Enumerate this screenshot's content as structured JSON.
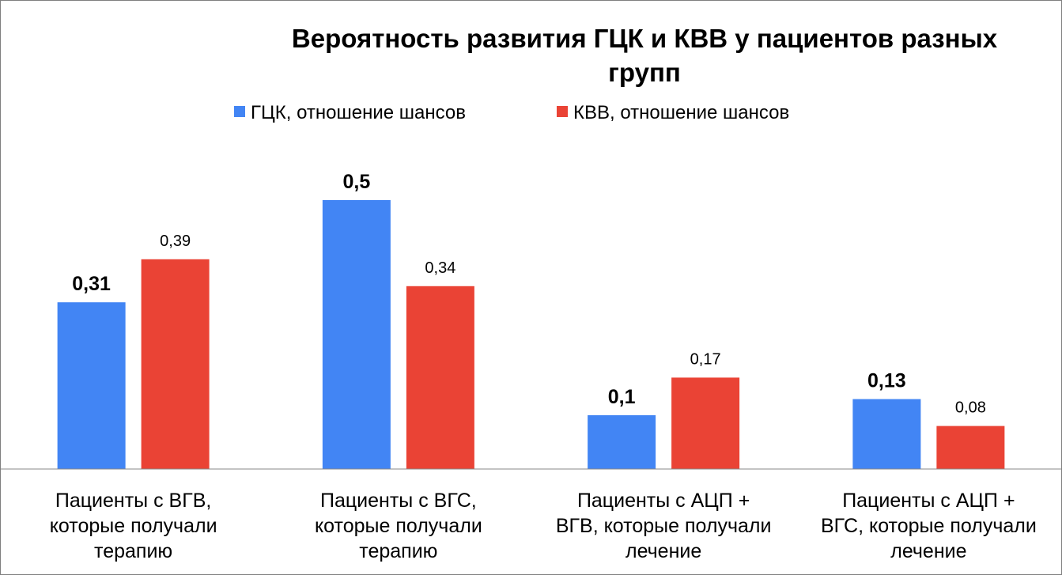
{
  "chart_data": {
    "type": "bar",
    "title": "Вероятность развития ГЦК и КВВ у пациентов разных групп",
    "title_lines": [
      "Вероятность развития ГЦК и КВВ у пациентов разных",
      "групп"
    ],
    "categories": [
      "Пациенты с ВГВ, которые получали терапию",
      "Пациенты с ВГС, которые получали терапию",
      "Пациенты с АЦП + ВГВ, которые получали лечение",
      "Пациенты с АЦП + ВГС, которые получали лечение"
    ],
    "category_lines": [
      [
        "Пациенты с ВГВ,",
        "которые получали",
        "терапию"
      ],
      [
        "Пациенты с ВГС,",
        "которые получали",
        "терапию"
      ],
      [
        "Пациенты с АЦП +",
        "ВГВ, которые получали",
        "лечение"
      ],
      [
        "Пациенты с АЦП +",
        "ВГС, которые получали",
        "лечение"
      ]
    ],
    "series": [
      {
        "name": "ГЦК, отношение шансов",
        "color": "#4285f4",
        "values": [
          0.31,
          0.5,
          0.1,
          0.13
        ],
        "labels": [
          "0,31",
          "0,5",
          "0,1",
          "0,13"
        ]
      },
      {
        "name": "КВВ, отношение шансов",
        "color": "#ea4335",
        "values": [
          0.39,
          0.34,
          0.17,
          0.08
        ],
        "labels": [
          "0,39",
          "0,34",
          "0,17",
          "0,08"
        ]
      }
    ],
    "xlabel": "",
    "ylabel": "",
    "ylim": [
      0,
      0.62
    ],
    "grid": false,
    "legend_position": "top"
  }
}
